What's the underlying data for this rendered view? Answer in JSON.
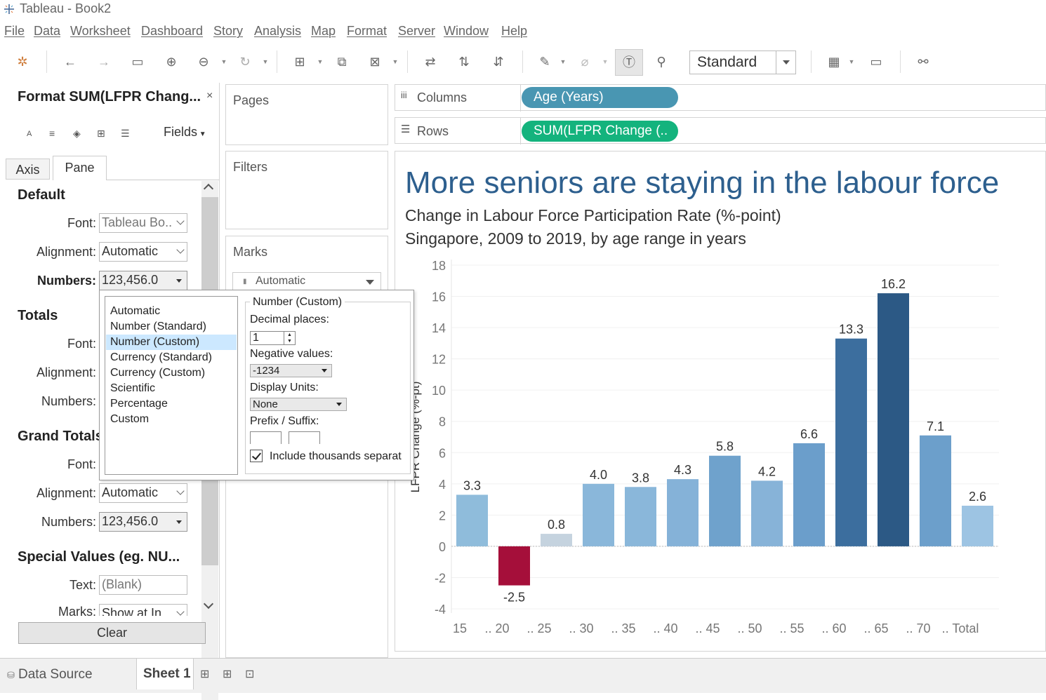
{
  "window": {
    "title": "Tableau - Book2"
  },
  "menu": [
    "File",
    "Data",
    "Worksheet",
    "Dashboard",
    "Story",
    "Analysis",
    "Map",
    "Format",
    "Server",
    "Window",
    "Help"
  ],
  "toolbar": {
    "fit_value": "Standard"
  },
  "format_pane": {
    "title": "Format SUM(LFPR Chang...",
    "close": "×",
    "fields_label": "Fields",
    "tabs": [
      "Axis",
      "Pane"
    ],
    "default": {
      "heading": "Default",
      "font_label": "Font:",
      "font_value": "Tableau Bo..",
      "alignment_label": "Alignment:",
      "alignment_value": "Automatic",
      "numbers_label": "Numbers:",
      "numbers_value": "123,456.0"
    },
    "totals": {
      "heading": "Totals",
      "font_label": "Font:",
      "alignment_label": "Alignment:",
      "numbers_label": "Numbers:"
    },
    "grand_totals": {
      "heading": "Grand Totals",
      "font_label": "Font:",
      "alignment_label": "Alignment:",
      "alignment_value": "Automatic",
      "numbers_label": "Numbers:",
      "numbers_value": "123,456.0"
    },
    "special_values": {
      "heading": "Special Values (eg. NU...",
      "text_label": "Text:",
      "text_placeholder": "(Blank)",
      "marks_label": "Marks:",
      "marks_value": "Show at In..."
    },
    "clear_label": "Clear"
  },
  "cards": {
    "pages": "Pages",
    "filters": "Filters",
    "marks": "Marks",
    "marks_type": "Automatic"
  },
  "shelves": {
    "columns_label": "Columns",
    "columns_pill": "Age (Years)",
    "rows_label": "Rows",
    "rows_pill": "SUM(LFPR Change (.."
  },
  "number_format_popup": {
    "options": [
      "Automatic",
      "Number (Standard)",
      "Number (Custom)",
      "Currency (Standard)",
      "Currency (Custom)",
      "Scientific",
      "Percentage",
      "Custom"
    ],
    "selected_index": 2,
    "group_title": "Number (Custom)",
    "decimal_label": "Decimal places:",
    "decimal_value": "1",
    "negative_label": "Negative values:",
    "negative_value": "-1234",
    "units_label": "Display Units:",
    "units_value": "None",
    "prefix_label": "Prefix / Suffix:",
    "thousands_label": "Include thousands separat",
    "thousands_checked": true
  },
  "chart_data": {
    "type": "bar",
    "title": "More seniors are staying in the labour force",
    "subtitle": [
      "Change in Labour Force Participation Rate (%-point)",
      "Singapore, 2009 to 2019, by age range in years"
    ],
    "ylabel": "LFPR Change (%-pt)",
    "xlabel": "",
    "ylim": [
      -4,
      18
    ],
    "yticks": [
      -4,
      -2,
      0,
      2,
      4,
      6,
      8,
      10,
      12,
      14,
      16,
      18
    ],
    "categories": [
      "15 .. 20",
      "20 .. 25",
      "25 .. 30",
      "30 .. 35",
      "35 .. 40",
      "40 .. 45",
      "45 .. 50",
      "50 .. 55",
      "55 .. 60",
      "60 .. 65",
      "65 .. 70",
      "70 ..",
      "Total"
    ],
    "tick_labels": [
      "15",
      ".. 20",
      ".. 25",
      ".. 30",
      ".. 35",
      ".. 40",
      ".. 45",
      ".. 50",
      ".. 55",
      ".. 60",
      ".. 65",
      ".. 70",
      ".. Total"
    ],
    "values": [
      3.3,
      -2.5,
      0.8,
      4.0,
      3.8,
      4.3,
      5.8,
      4.2,
      6.6,
      13.3,
      16.2,
      7.1,
      2.6
    ],
    "data_labels": [
      "3.3",
      "-2.5",
      "0.8",
      "4.0",
      "3.8",
      "4.3",
      "5.8",
      "4.2",
      "6.6",
      "13.3",
      "16.2",
      "7.1",
      "2.6"
    ],
    "colors": [
      "#8fbcdb",
      "#a50f3a",
      "#c5d3df",
      "#8ab7da",
      "#8ab7da",
      "#85b2d8",
      "#6fa2cc",
      "#87b3d8",
      "#6b9ecb",
      "#3c6e9e",
      "#2c5985",
      "#6c9fcb",
      "#9dc4e3"
    ],
    "grid": true
  },
  "bottom_tabs": {
    "data_source": "Data Source",
    "sheet": "Sheet 1"
  }
}
